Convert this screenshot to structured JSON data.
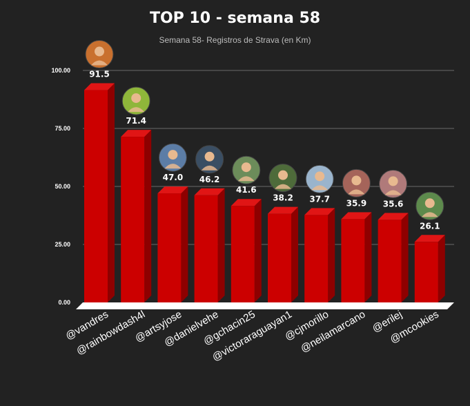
{
  "chart_data": {
    "type": "bar",
    "title": "TOP 10 - semana 58",
    "subtitle": "Semana 58- Registros de Strava (en Km)",
    "xlabel": "",
    "ylabel": "",
    "ylim": [
      0,
      100
    ],
    "yticks": [
      "0.00",
      "25.00",
      "50.00",
      "75.00",
      "100.00"
    ],
    "grid": true,
    "categories": [
      "@vandres",
      "@rainbowdash4l",
      "@artsyjose",
      "@danielvehe",
      "@gchacin25",
      "@victoraraguayan1",
      "@cjmorillo",
      "@neilamarcano",
      "@erilej",
      "@mcookies"
    ],
    "values": [
      91.5,
      71.4,
      47.0,
      46.2,
      41.6,
      38.2,
      37.7,
      35.9,
      35.6,
      26.1
    ],
    "value_labels": [
      "91.5",
      "71.4",
      "47.0",
      "46.2",
      "41.6",
      "38.2",
      "37.7",
      "35.9",
      "35.6",
      "26.1"
    ],
    "avatar_icons": [
      "avatar-icon",
      "avatar-icon",
      "avatar-icon",
      "avatar-icon",
      "avatar-icon",
      "avatar-icon",
      "avatar-icon",
      "avatar-icon",
      "avatar-icon",
      "avatar-icon"
    ]
  },
  "colors": {
    "background": "#222222",
    "bar_front": "#cc0000",
    "bar_side": "#8e0000",
    "bar_top": "#e01515",
    "grid": "#6a6a6a",
    "floor": "#ffffff",
    "text": "#ffffff",
    "subtitle": "#bdbdbd",
    "avatars": [
      "#c9702e",
      "#8fb63a",
      "#5c7da6",
      "#3a4e63",
      "#6c8c5a",
      "#4e6b3a",
      "#9ab4cc",
      "#a5645a",
      "#b07a7a",
      "#5d8a4c"
    ]
  }
}
